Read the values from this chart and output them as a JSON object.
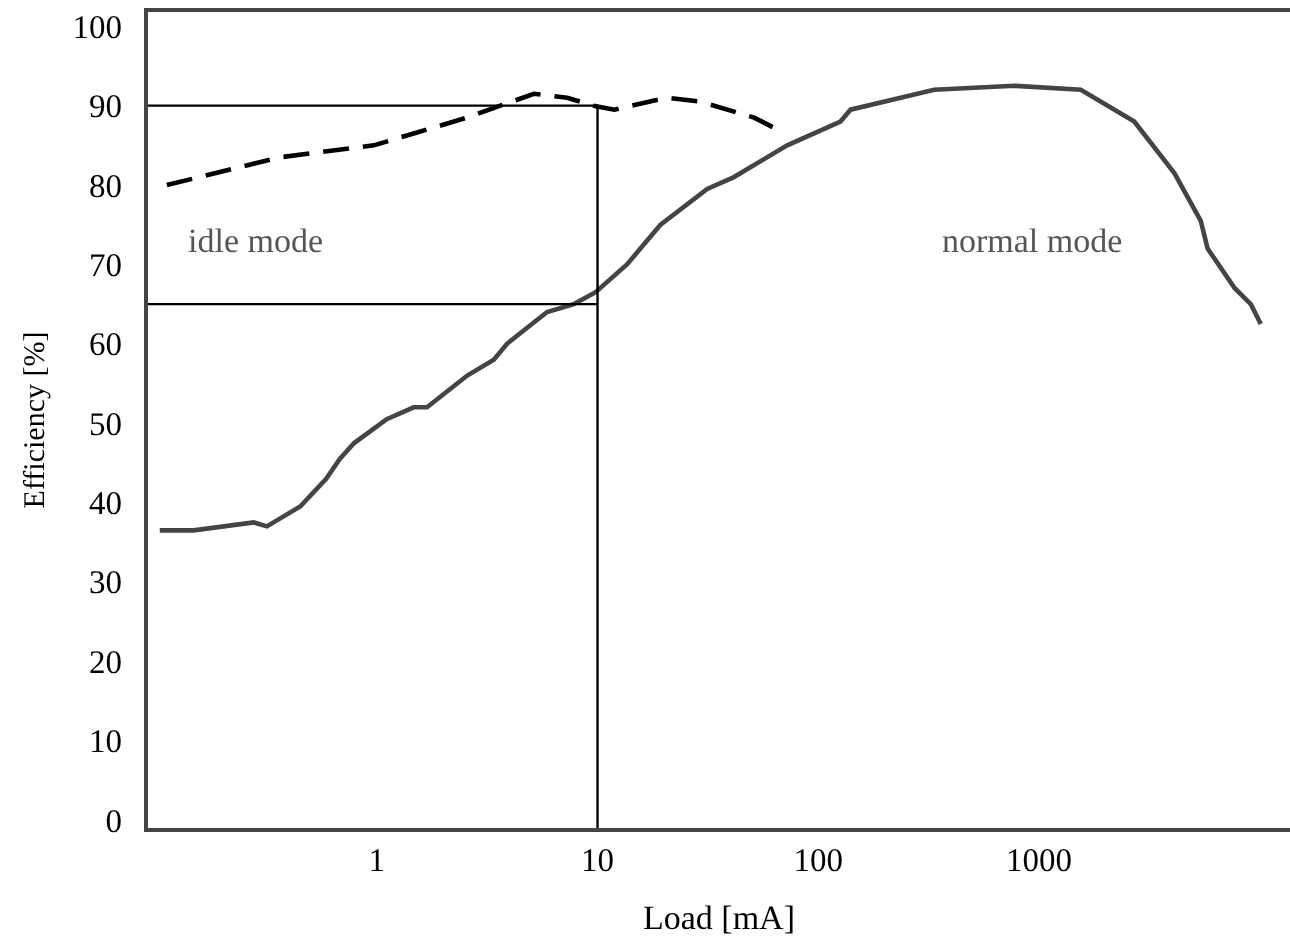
{
  "chart_data": {
    "type": "line",
    "xlabel": "Load [mA]",
    "ylabel": "Efficiency [%]",
    "log": "x",
    "xlim": [
      0.092,
      13700
    ],
    "xticks": [
      1,
      10,
      100,
      1000
    ],
    "ylim": [
      -1,
      101.8
    ],
    "yticks": [
      0,
      10,
      20,
      30,
      40,
      50,
      60,
      70,
      80,
      90,
      100
    ],
    "series": [
      {
        "color": "#444444",
        "line_style": "solid",
        "x": [
          0.104,
          0.148,
          0.277,
          0.318,
          0.45,
          0.59,
          0.68,
          0.79,
          1.11,
          1.47,
          1.69,
          2.57,
          3.39,
          3.89,
          5.91,
          7.82,
          9.8,
          13.6,
          16.2,
          19.3,
          31.4,
          41.5,
          72.3,
          126,
          140,
          335,
          773,
          1545,
          2700,
          4100,
          5400,
          5800,
          7700,
          9100,
          10100
        ],
        "values": [
          36.5,
          36.5,
          37.5,
          37,
          39.5,
          43,
          45.5,
          47.5,
          50.5,
          52,
          52,
          56,
          58,
          60,
          64,
          65,
          66.5,
          70,
          72.5,
          75,
          79.5,
          81,
          85,
          88,
          89.5,
          92,
          92.5,
          92,
          88,
          81.5,
          75.5,
          72,
          67,
          65,
          62.5
        ]
      },
      {
        "color": "#000000",
        "line_style": "dashed",
        "x": [
          0.112,
          0.366,
          0.97,
          1.47,
          2.57,
          3.63,
          5.15,
          7.28,
          9.6,
          11.9,
          20.7,
          29.3,
          51.2,
          65.2
        ],
        "values": [
          80,
          83.5,
          85,
          86.5,
          88.5,
          90,
          91.5,
          91,
          90,
          89.5,
          91,
          90.5,
          88.5,
          87
        ]
      }
    ],
    "ref_lines": [
      {
        "axis": "x",
        "value": 10,
        "color": "#000000"
      },
      {
        "axis": "y",
        "value": 90,
        "color": "#000000"
      },
      {
        "axis": "y",
        "value": 65,
        "color": "#000000"
      }
    ],
    "annotations": [
      "idle mode",
      "normal mode"
    ]
  }
}
